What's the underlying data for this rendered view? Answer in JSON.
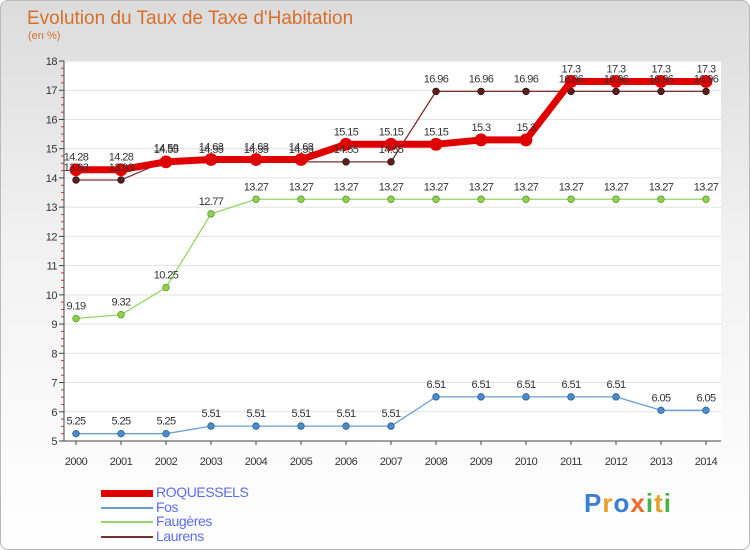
{
  "chart_data": {
    "type": "line",
    "title": "Evolution du Taux de Taxe d'Habitation",
    "ylabel": "(en %)",
    "xlabel": "",
    "x": [
      "2000",
      "2001",
      "2002",
      "2003",
      "2004",
      "2005",
      "2006",
      "2007",
      "2008",
      "2009",
      "2010",
      "2011",
      "2012",
      "2013",
      "2014"
    ],
    "ylim": [
      5,
      18
    ],
    "yticks": [
      "5",
      "6",
      "7",
      "8",
      "9",
      "10",
      "11",
      "12",
      "13",
      "14",
      "15",
      "16",
      "17",
      "18"
    ],
    "series": [
      {
        "name": "ROQUESSELS",
        "color": "#e00000",
        "values": [
          14.28,
          14.28,
          14.55,
          14.63,
          14.63,
          14.63,
          15.15,
          15.15,
          15.15,
          15.3,
          15.3,
          17.3,
          17.3,
          17.3,
          17.3
        ],
        "labels": [
          "14.28",
          "14.28",
          "14.55",
          "14.63",
          "14.63",
          "14.63",
          "15.15",
          "15.15",
          "15.15",
          "15.3",
          "15.3",
          "17.3",
          "17.3",
          "17.3",
          "17.3"
        ]
      },
      {
        "name": "Fos",
        "color": "#6a9fd4",
        "values": [
          5.25,
          5.25,
          5.25,
          5.51,
          5.51,
          5.51,
          5.51,
          5.51,
          6.51,
          6.51,
          6.51,
          6.51,
          6.51,
          6.05,
          6.05
        ],
        "labels": [
          "5.25",
          "5.25",
          "5.25",
          "5.51",
          "5.51",
          "5.51",
          "5.51",
          "5.51",
          "6.51",
          "6.51",
          "6.51",
          "6.51",
          "6.51",
          "6.05",
          "6.05"
        ]
      },
      {
        "name": "Faugères",
        "color": "#94d46a",
        "values": [
          9.19,
          9.32,
          10.25,
          12.77,
          13.27,
          13.27,
          13.27,
          13.27,
          13.27,
          13.27,
          13.27,
          13.27,
          13.27,
          13.27,
          13.27
        ],
        "labels": [
          "9.19",
          "9.32",
          "10.25",
          "12.77",
          "13.27",
          "13.27",
          "13.27",
          "13.27",
          "13.27",
          "13.27",
          "13.27",
          "13.27",
          "13.27",
          "13.27",
          "13.27"
        ]
      },
      {
        "name": "Laurens",
        "color": "#7a3030",
        "values": [
          13.93,
          13.93,
          14.59,
          14.55,
          14.55,
          14.55,
          14.55,
          14.55,
          16.96,
          16.96,
          16.96,
          16.96,
          16.96,
          16.96,
          16.96
        ],
        "labels": [
          "13.93",
          "13.93",
          "14.59",
          "14.55",
          "14.55",
          "14.55",
          "14.55",
          "14.55",
          "16.96",
          "16.96",
          "16.96",
          "16.96",
          "16.96",
          "16.96",
          "16.96"
        ]
      }
    ]
  },
  "logo": {
    "letters": [
      "P",
      "r",
      "o",
      "x",
      "i",
      "t",
      "i"
    ],
    "colors": [
      "#3c7fd1",
      "#e8a02a",
      "#3c7fd1",
      "#ea6b2a",
      "#4caf50",
      "#e8a02a",
      "#4caf50"
    ]
  }
}
